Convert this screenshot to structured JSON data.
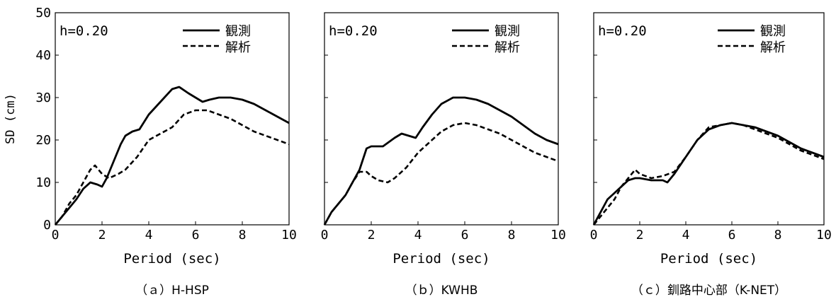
{
  "chart_data": [
    {
      "type": "line",
      "panel_label": "（ａ）H-HSP",
      "annotation": "h=0.20",
      "ylabel": "SD (cm)",
      "xlabel": "Period (sec)",
      "xlim": [
        0,
        10
      ],
      "ylim": [
        0,
        50
      ],
      "xticks": [
        "0",
        "2",
        "4",
        "6",
        "8",
        "10"
      ],
      "yticks": [
        "0",
        "10",
        "20",
        "30",
        "40",
        "50"
      ],
      "legend_position": "top-right",
      "series": [
        {
          "name": "観測",
          "style": "solid",
          "x": [
            0,
            0.3,
            0.6,
            0.9,
            1.2,
            1.5,
            1.8,
            2.0,
            2.2,
            2.5,
            2.8,
            3.0,
            3.3,
            3.6,
            4.0,
            4.5,
            5.0,
            5.3,
            5.7,
            6.0,
            6.3,
            6.6,
            7.0,
            7.5,
            8.0,
            8.5,
            9.0,
            9.5,
            10.0
          ],
          "y": [
            0,
            2,
            4,
            6,
            8.5,
            10,
            9.5,
            9,
            11,
            15,
            19,
            21,
            22,
            22.5,
            26,
            29,
            32,
            32.5,
            31,
            30,
            29,
            29.5,
            30,
            30,
            29.5,
            28.5,
            27,
            25.5,
            24
          ]
        },
        {
          "name": "解析",
          "style": "dashed",
          "x": [
            0,
            0.3,
            0.6,
            0.9,
            1.2,
            1.5,
            1.7,
            2.0,
            2.3,
            2.7,
            3.0,
            3.5,
            4.0,
            4.5,
            5.0,
            5.5,
            6.0,
            6.5,
            7.0,
            7.5,
            8.0,
            8.5,
            9.0,
            9.5,
            10.0
          ],
          "y": [
            0,
            2,
            5,
            7,
            10,
            13,
            14,
            12,
            11,
            12,
            13,
            16,
            20,
            21.5,
            23,
            26,
            27,
            27,
            26,
            25,
            23.5,
            22,
            21,
            20,
            19
          ]
        }
      ]
    },
    {
      "type": "line",
      "panel_label": "（ｂ）KWHB",
      "annotation": "h=0.20",
      "ylabel": "",
      "xlabel": "Period (sec)",
      "xlim": [
        0,
        10
      ],
      "ylim": [
        0,
        50
      ],
      "xticks": [
        "0",
        "2",
        "4",
        "6",
        "8",
        "10"
      ],
      "yticks": [],
      "legend_position": "top-right",
      "series": [
        {
          "name": "観測",
          "style": "solid",
          "x": [
            0,
            0.3,
            0.6,
            0.9,
            1.2,
            1.5,
            1.8,
            2.0,
            2.5,
            3.0,
            3.3,
            3.6,
            3.9,
            4.2,
            4.6,
            5.0,
            5.5,
            6.0,
            6.5,
            7.0,
            7.5,
            8.0,
            8.5,
            9.0,
            9.5,
            10.0
          ],
          "y": [
            0,
            3,
            5,
            7,
            10,
            13,
            18,
            18.5,
            18.5,
            20.5,
            21.5,
            21,
            20.5,
            23,
            26,
            28.5,
            30,
            30,
            29.5,
            28.5,
            27,
            25.5,
            23.5,
            21.5,
            20,
            19
          ]
        },
        {
          "name": "解析",
          "style": "dashed",
          "x": [
            0,
            0.3,
            0.6,
            0.9,
            1.2,
            1.5,
            1.8,
            2.0,
            2.3,
            2.7,
            3.0,
            3.5,
            4.0,
            4.5,
            5.0,
            5.5,
            6.0,
            6.5,
            7.0,
            7.5,
            8.0,
            8.5,
            9.0,
            9.5,
            10.0
          ],
          "y": [
            0,
            3,
            5,
            7,
            10,
            12.5,
            12.5,
            11.5,
            10.5,
            10,
            11,
            13.5,
            17,
            19.5,
            22,
            23.5,
            24,
            23.5,
            22.5,
            21.5,
            20,
            18.5,
            17,
            16,
            15
          ]
        }
      ]
    },
    {
      "type": "line",
      "panel_label": "（ｃ）釧路中心部（K-NET）",
      "annotation": "h=0.20",
      "ylabel": "",
      "xlabel": "Period (sec)",
      "xlim": [
        0,
        10
      ],
      "ylim": [
        0,
        50
      ],
      "xticks": [
        "0",
        "2",
        "4",
        "6",
        "8",
        "10"
      ],
      "yticks": [],
      "legend_position": "top-right",
      "series": [
        {
          "name": "観測",
          "style": "solid",
          "x": [
            0,
            0.3,
            0.6,
            0.9,
            1.2,
            1.5,
            1.8,
            2.0,
            2.5,
            3.0,
            3.2,
            3.5,
            4.0,
            4.5,
            5.0,
            5.5,
            6.0,
            6.5,
            7.0,
            7.5,
            8.0,
            8.5,
            9.0,
            9.5,
            10.0
          ],
          "y": [
            0,
            3,
            6,
            7.5,
            9,
            10.5,
            11,
            11,
            10.5,
            10.5,
            10,
            12,
            16,
            20,
            22.5,
            23.5,
            24,
            23.5,
            23,
            22,
            21,
            19.5,
            18,
            17,
            16
          ]
        },
        {
          "name": "解析",
          "style": "dashed",
          "x": [
            0,
            0.3,
            0.6,
            0.9,
            1.2,
            1.5,
            1.8,
            2.0,
            2.5,
            3.0,
            3.5,
            4.0,
            4.5,
            5.0,
            5.5,
            6.0,
            6.5,
            7.0,
            7.5,
            8.0,
            8.5,
            9.0,
            9.5,
            10.0
          ],
          "y": [
            0,
            2,
            4,
            6,
            9,
            11,
            13,
            12,
            11,
            11.5,
            12.5,
            16,
            20,
            23,
            23.5,
            24,
            23.5,
            22.5,
            21.5,
            20.5,
            19,
            17.5,
            16.5,
            15.5
          ]
        }
      ]
    }
  ]
}
